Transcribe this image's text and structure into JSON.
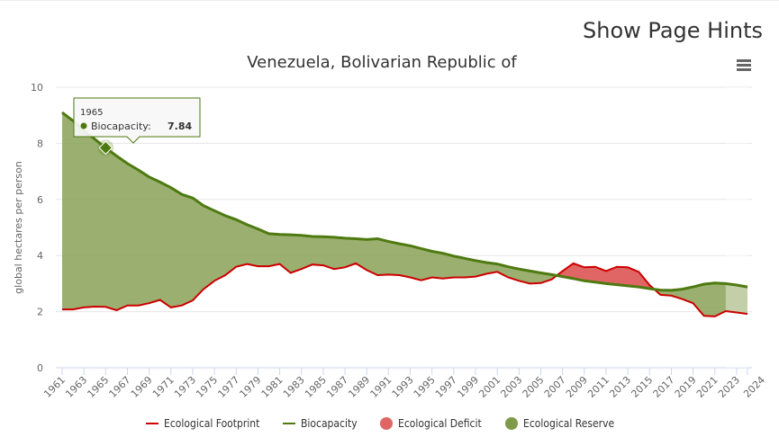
{
  "page": {
    "hints_label": "Show Page Hints",
    "menu_icon": "hamburger-menu-icon"
  },
  "chart_data": {
    "type": "area",
    "title": "Venezuela, Bolivarian Republic of",
    "ylabel": "global hectares per person",
    "xlabel": "",
    "ylim": [
      0,
      10
    ],
    "yticks": [
      0,
      2,
      4,
      6,
      8,
      10
    ],
    "grid": true,
    "legend_position": "bottom",
    "x": [
      1961,
      1962,
      1963,
      1964,
      1965,
      1966,
      1967,
      1968,
      1969,
      1970,
      1971,
      1972,
      1973,
      1974,
      1975,
      1976,
      1977,
      1978,
      1979,
      1980,
      1981,
      1982,
      1983,
      1984,
      1985,
      1986,
      1987,
      1988,
      1989,
      1990,
      1991,
      1992,
      1993,
      1994,
      1995,
      1996,
      1997,
      1998,
      1999,
      2000,
      2001,
      2002,
      2003,
      2004,
      2005,
      2006,
      2007,
      2008,
      2009,
      2010,
      2011,
      2012,
      2013,
      2014,
      2015,
      2016,
      2017,
      2018,
      2019,
      2020,
      2021,
      2022,
      2023,
      2024
    ],
    "xticks": [
      "1961",
      "1963",
      "1965",
      "1967",
      "1969",
      "1971",
      "1973",
      "1975",
      "1977",
      "1979",
      "1981",
      "1983",
      "1985",
      "1987",
      "1989",
      "1991",
      "1993",
      "1995",
      "1997",
      "1999",
      "2001",
      "2003",
      "2005",
      "2007",
      "2009",
      "2011",
      "2013",
      "2015",
      "2017",
      "2019",
      "2021",
      "2023",
      "2024"
    ],
    "projection_from": 2022,
    "series": [
      {
        "name": "Ecological Footprint",
        "color": "#cc0000",
        "values": [
          2.08,
          2.08,
          2.15,
          2.18,
          2.17,
          2.05,
          2.22,
          2.22,
          2.3,
          2.42,
          2.15,
          2.22,
          2.4,
          2.8,
          3.1,
          3.3,
          3.6,
          3.7,
          3.62,
          3.62,
          3.7,
          3.38,
          3.52,
          3.68,
          3.65,
          3.52,
          3.58,
          3.72,
          3.48,
          3.3,
          3.32,
          3.3,
          3.22,
          3.12,
          3.22,
          3.18,
          3.22,
          3.22,
          3.25,
          3.35,
          3.42,
          3.22,
          3.1,
          3.0,
          3.02,
          3.15,
          3.45,
          3.72,
          3.58,
          3.6,
          3.45,
          3.6,
          3.58,
          3.42,
          2.95,
          2.6,
          2.57,
          2.45,
          2.3,
          1.85,
          1.83,
          2.02,
          1.97,
          1.92
        ]
      },
      {
        "name": "Biocapacity",
        "color": "#4e7a10",
        "values": [
          9.1,
          8.8,
          8.45,
          8.15,
          7.84,
          7.55,
          7.28,
          7.05,
          6.8,
          6.62,
          6.42,
          6.18,
          6.05,
          5.78,
          5.6,
          5.42,
          5.28,
          5.1,
          4.95,
          4.78,
          4.75,
          4.74,
          4.72,
          4.68,
          4.67,
          4.65,
          4.62,
          4.6,
          4.57,
          4.6,
          4.5,
          4.42,
          4.35,
          4.25,
          4.15,
          4.08,
          3.98,
          3.9,
          3.82,
          3.75,
          3.7,
          3.6,
          3.52,
          3.45,
          3.38,
          3.32,
          3.25,
          3.18,
          3.1,
          3.05,
          3.0,
          2.96,
          2.92,
          2.88,
          2.82,
          2.77,
          2.76,
          2.8,
          2.88,
          2.98,
          3.02,
          3.0,
          2.95,
          2.88
        ]
      }
    ],
    "areas": [
      {
        "name": "Ecological Deficit",
        "color": "#e06666"
      },
      {
        "name": "Ecological Reserve",
        "color": "#7f9a48"
      }
    ],
    "tooltip": {
      "year": "1965",
      "label": "Biocapacity:",
      "value": "7.84"
    }
  }
}
